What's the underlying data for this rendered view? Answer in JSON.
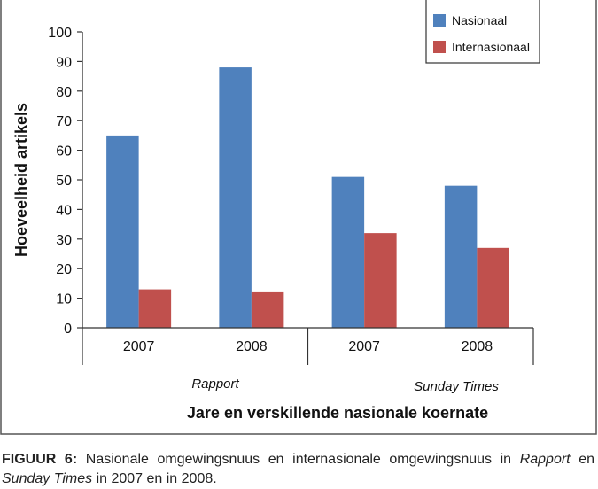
{
  "chart_data": {
    "type": "bar",
    "title": "",
    "xlabel": "Jare en verskillende nasionale koernate",
    "ylabel": "Hoeveelheid artikels",
    "ylim": [
      0,
      100
    ],
    "yticks": [
      0,
      10,
      20,
      30,
      40,
      50,
      60,
      70,
      80,
      90,
      100
    ],
    "categories": [
      "2007",
      "2008",
      "2007",
      "2008"
    ],
    "groups": [
      {
        "label": "Rapport",
        "categories": [
          "2007",
          "2008"
        ]
      },
      {
        "label": "Sunday Times",
        "categories": [
          "2007",
          "2008"
        ]
      }
    ],
    "series": [
      {
        "name": "Nasionaal",
        "color": "#4f81bd",
        "values": [
          65,
          88,
          51,
          48
        ]
      },
      {
        "name": "Internasionaal",
        "color": "#c0504d",
        "values": [
          13,
          12,
          32,
          27
        ]
      }
    ],
    "legend": "top-right",
    "grid": false
  },
  "caption": {
    "label": "FIGUUR 6:",
    "text_1": " Nasionale omgewingsnuus en internasionale omgewingsnuus in ",
    "italic_1": "Rapport",
    "text_2": " en ",
    "italic_2": "Sunday Times",
    "text_3": " in 2007 en in 2008."
  }
}
